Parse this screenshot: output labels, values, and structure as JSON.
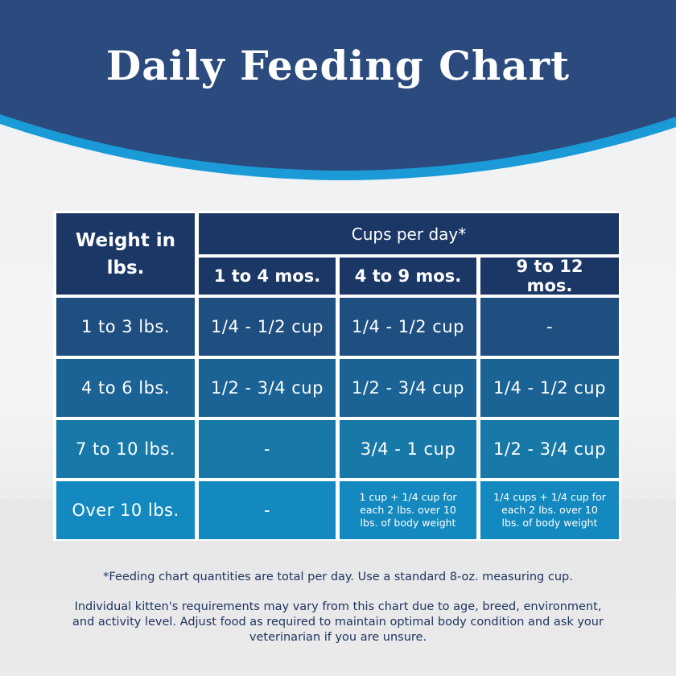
{
  "header": {
    "title": "Daily Feeding Chart"
  },
  "table": {
    "corner": "Weight in lbs.",
    "group_header": "Cups per day*",
    "columns": [
      "1 to 4 mos.",
      "4 to 9 mos.",
      "9 to 12 mos."
    ],
    "rows": [
      [
        "1 to 3 lbs.",
        "1/4 - 1/2 cup",
        "1/4 - 1/2 cup",
        "-"
      ],
      [
        "4 to 6 lbs.",
        "1/2 - 3/4 cup",
        "1/2 - 3/4 cup",
        "1/4 - 1/2 cup"
      ],
      [
        "7 to 10 lbs.",
        "-",
        "3/4 - 1 cup",
        "1/2 - 3/4 cup"
      ],
      [
        "Over 10 lbs.",
        "-",
        "1 cup + 1/4 cup for each 2 lbs. over 10 lbs. of body weight",
        "1/4 cups + 1/4 cup for each 2 lbs. over 10 lbs. of body weight"
      ]
    ]
  },
  "footnotes": {
    "note": "*Feeding chart quantities are total per day. Use a standard 8-oz. measuring cup.",
    "disclaimer": "Individual kitten's requirements may vary from this chart due to age, breed, environment, and activity level. Adjust food as required to maintain optimal body condition and ask your veterinarian if you are unsure."
  }
}
